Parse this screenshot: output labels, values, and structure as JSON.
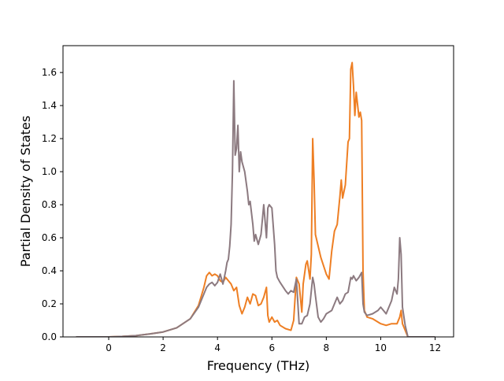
{
  "chart_data": {
    "type": "line",
    "title": "",
    "xlabel": "Frequency (THz)",
    "ylabel": "Partial Density of States",
    "xlim": [
      -1.68,
      12.68
    ],
    "ylim": [
      0.0,
      1.7625
    ],
    "xticks": [
      0,
      2,
      4,
      6,
      8,
      10,
      12
    ],
    "yticks": [
      0.0,
      0.2,
      0.4,
      0.6,
      0.8,
      1.0,
      1.2,
      1.4,
      1.6
    ],
    "xtick_labels": [
      "0",
      "2",
      "4",
      "6",
      "8",
      "10",
      "12"
    ],
    "ytick_labels": [
      "0.0",
      "0.2",
      "0.4",
      "0.6",
      "0.8",
      "1.0",
      "1.2",
      "1.4",
      "1.6"
    ],
    "grid": false,
    "legend": "none",
    "series": [
      {
        "color": "#ee7f24",
        "points": [
          [
            -1.2,
            0.0
          ],
          [
            0.0,
            0.0
          ],
          [
            0.5,
            0.003
          ],
          [
            1.0,
            0.008
          ],
          [
            1.5,
            0.018
          ],
          [
            2.0,
            0.03
          ],
          [
            2.5,
            0.055
          ],
          [
            3.0,
            0.11
          ],
          [
            3.3,
            0.19
          ],
          [
            3.5,
            0.3
          ],
          [
            3.6,
            0.37
          ],
          [
            3.7,
            0.39
          ],
          [
            3.8,
            0.37
          ],
          [
            3.9,
            0.38
          ],
          [
            4.0,
            0.37
          ],
          [
            4.1,
            0.34
          ],
          [
            4.2,
            0.33
          ],
          [
            4.3,
            0.36
          ],
          [
            4.4,
            0.34
          ],
          [
            4.5,
            0.32
          ],
          [
            4.6,
            0.28
          ],
          [
            4.7,
            0.3
          ],
          [
            4.8,
            0.19
          ],
          [
            4.9,
            0.14
          ],
          [
            5.0,
            0.18
          ],
          [
            5.1,
            0.24
          ],
          [
            5.2,
            0.2
          ],
          [
            5.3,
            0.26
          ],
          [
            5.4,
            0.25
          ],
          [
            5.5,
            0.19
          ],
          [
            5.6,
            0.2
          ],
          [
            5.7,
            0.24
          ],
          [
            5.8,
            0.3
          ],
          [
            5.85,
            0.13
          ],
          [
            5.9,
            0.09
          ],
          [
            6.0,
            0.12
          ],
          [
            6.1,
            0.09
          ],
          [
            6.2,
            0.1
          ],
          [
            6.3,
            0.07
          ],
          [
            6.5,
            0.05
          ],
          [
            6.7,
            0.04
          ],
          [
            6.8,
            0.1
          ],
          [
            6.9,
            0.36
          ],
          [
            7.0,
            0.32
          ],
          [
            7.1,
            0.15
          ],
          [
            7.15,
            0.32
          ],
          [
            7.25,
            0.44
          ],
          [
            7.3,
            0.46
          ],
          [
            7.4,
            0.35
          ],
          [
            7.45,
            0.5
          ],
          [
            7.5,
            1.2
          ],
          [
            7.55,
            0.95
          ],
          [
            7.6,
            0.62
          ],
          [
            7.8,
            0.48
          ],
          [
            8.0,
            0.38
          ],
          [
            8.1,
            0.35
          ],
          [
            8.2,
            0.52
          ],
          [
            8.3,
            0.64
          ],
          [
            8.4,
            0.68
          ],
          [
            8.5,
            0.85
          ],
          [
            8.55,
            0.95
          ],
          [
            8.6,
            0.84
          ],
          [
            8.7,
            0.92
          ],
          [
            8.8,
            1.18
          ],
          [
            8.85,
            1.2
          ],
          [
            8.9,
            1.62
          ],
          [
            8.95,
            1.66
          ],
          [
            9.0,
            1.52
          ],
          [
            9.05,
            1.34
          ],
          [
            9.1,
            1.48
          ],
          [
            9.2,
            1.33
          ],
          [
            9.25,
            1.36
          ],
          [
            9.3,
            1.31
          ],
          [
            9.35,
            0.4
          ],
          [
            9.4,
            0.16
          ],
          [
            9.5,
            0.12
          ],
          [
            9.7,
            0.11
          ],
          [
            9.9,
            0.09
          ],
          [
            10.0,
            0.08
          ],
          [
            10.2,
            0.07
          ],
          [
            10.4,
            0.08
          ],
          [
            10.6,
            0.08
          ],
          [
            10.7,
            0.12
          ],
          [
            10.75,
            0.16
          ],
          [
            10.8,
            0.08
          ],
          [
            10.9,
            0.04
          ],
          [
            11.0,
            0.0
          ],
          [
            12.0,
            0.0
          ]
        ]
      },
      {
        "color": "#8c7a80",
        "points": [
          [
            -1.2,
            0.0
          ],
          [
            0.0,
            0.0
          ],
          [
            0.5,
            0.003
          ],
          [
            1.0,
            0.008
          ],
          [
            1.5,
            0.018
          ],
          [
            2.0,
            0.03
          ],
          [
            2.5,
            0.055
          ],
          [
            3.0,
            0.11
          ],
          [
            3.3,
            0.18
          ],
          [
            3.5,
            0.26
          ],
          [
            3.6,
            0.3
          ],
          [
            3.7,
            0.32
          ],
          [
            3.8,
            0.33
          ],
          [
            3.9,
            0.31
          ],
          [
            4.0,
            0.33
          ],
          [
            4.1,
            0.38
          ],
          [
            4.2,
            0.32
          ],
          [
            4.3,
            0.4
          ],
          [
            4.35,
            0.45
          ],
          [
            4.4,
            0.47
          ],
          [
            4.45,
            0.55
          ],
          [
            4.5,
            0.68
          ],
          [
            4.55,
            1.0
          ],
          [
            4.6,
            1.55
          ],
          [
            4.65,
            1.1
          ],
          [
            4.7,
            1.14
          ],
          [
            4.75,
            1.28
          ],
          [
            4.8,
            1.0
          ],
          [
            4.85,
            1.12
          ],
          [
            4.9,
            1.06
          ],
          [
            5.0,
            1.0
          ],
          [
            5.1,
            0.88
          ],
          [
            5.15,
            0.8
          ],
          [
            5.2,
            0.82
          ],
          [
            5.3,
            0.68
          ],
          [
            5.35,
            0.58
          ],
          [
            5.4,
            0.62
          ],
          [
            5.5,
            0.56
          ],
          [
            5.6,
            0.62
          ],
          [
            5.7,
            0.8
          ],
          [
            5.75,
            0.7
          ],
          [
            5.8,
            0.6
          ],
          [
            5.85,
            0.78
          ],
          [
            5.9,
            0.8
          ],
          [
            6.0,
            0.78
          ],
          [
            6.1,
            0.56
          ],
          [
            6.15,
            0.4
          ],
          [
            6.2,
            0.36
          ],
          [
            6.3,
            0.33
          ],
          [
            6.5,
            0.28
          ],
          [
            6.6,
            0.26
          ],
          [
            6.7,
            0.28
          ],
          [
            6.8,
            0.27
          ],
          [
            6.9,
            0.35
          ],
          [
            7.0,
            0.08
          ],
          [
            7.1,
            0.08
          ],
          [
            7.2,
            0.12
          ],
          [
            7.3,
            0.13
          ],
          [
            7.4,
            0.2
          ],
          [
            7.5,
            0.36
          ],
          [
            7.55,
            0.32
          ],
          [
            7.6,
            0.25
          ],
          [
            7.7,
            0.12
          ],
          [
            7.8,
            0.09
          ],
          [
            7.9,
            0.11
          ],
          [
            8.0,
            0.14
          ],
          [
            8.2,
            0.16
          ],
          [
            8.4,
            0.24
          ],
          [
            8.5,
            0.2
          ],
          [
            8.6,
            0.22
          ],
          [
            8.7,
            0.26
          ],
          [
            8.8,
            0.27
          ],
          [
            8.9,
            0.36
          ],
          [
            8.95,
            0.35
          ],
          [
            9.0,
            0.37
          ],
          [
            9.1,
            0.34
          ],
          [
            9.2,
            0.36
          ],
          [
            9.3,
            0.39
          ],
          [
            9.35,
            0.2
          ],
          [
            9.4,
            0.15
          ],
          [
            9.5,
            0.13
          ],
          [
            9.7,
            0.14
          ],
          [
            9.9,
            0.16
          ],
          [
            10.0,
            0.18
          ],
          [
            10.1,
            0.16
          ],
          [
            10.2,
            0.14
          ],
          [
            10.4,
            0.22
          ],
          [
            10.5,
            0.3
          ],
          [
            10.6,
            0.26
          ],
          [
            10.65,
            0.35
          ],
          [
            10.7,
            0.6
          ],
          [
            10.75,
            0.5
          ],
          [
            10.8,
            0.18
          ],
          [
            10.9,
            0.07
          ],
          [
            11.0,
            0.0
          ],
          [
            12.0,
            0.0
          ]
        ]
      }
    ]
  }
}
